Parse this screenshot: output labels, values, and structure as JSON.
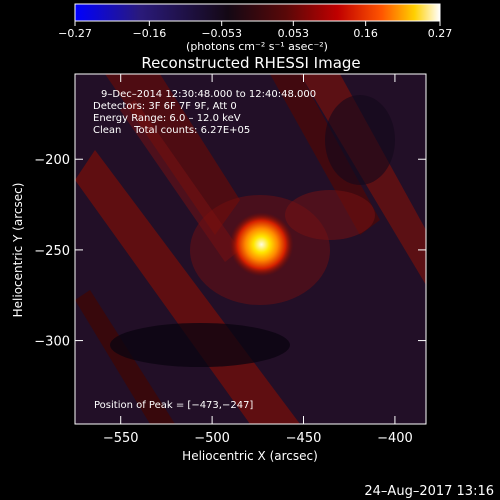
{
  "chart_data": {
    "type": "heatmap",
    "title": "Reconstructed RHESSI Image",
    "xlabel": "Heliocentric X (arcsec)",
    "ylabel": "Heliocentric Y (arcsec)",
    "xlim": [
      -575,
      -383
    ],
    "ylim": [
      -346,
      -153
    ],
    "x_ticks": [
      -550,
      -500,
      -450,
      -400
    ],
    "y_ticks": [
      -200,
      -250,
      -300
    ],
    "x_tick_labels": [
      "−550",
      "−500",
      "−450",
      "−400"
    ],
    "y_tick_labels": [
      "−200",
      "−250",
      "−300"
    ],
    "colorbar": {
      "min": -0.27,
      "max": 0.27,
      "tick_values": [
        -0.27,
        -0.16,
        -0.053,
        0.053,
        0.16,
        0.27
      ],
      "tick_labels": [
        "−0.27",
        "−0.16",
        "−0.053",
        "0.053",
        "0.16",
        "0.27"
      ],
      "units": "(photons cm⁻² s⁻¹ asec⁻²)"
    },
    "annotations": {
      "time_range": "9–Dec–2014 12:30:48.000 to 12:40:48.000",
      "detectors": "Detectors: 3F 6F 7F 9F, Att 0",
      "energy_range": "Energy Range: 6.0 – 12.0 keV",
      "clean": "Clean    Total counts: 6.27E+05",
      "peak_position": "Position of Peak = [−473,−247]"
    },
    "peak": {
      "x": -473,
      "y": -247,
      "value": 0.27
    },
    "colormap": [
      "#0000ff",
      "#1a1a60",
      "#000000",
      "#6e0a0a",
      "#c80000",
      "#ff6600",
      "#ffe000",
      "#ffffff"
    ]
  },
  "footer": {
    "date": "24–Aug–2017 13:16"
  }
}
